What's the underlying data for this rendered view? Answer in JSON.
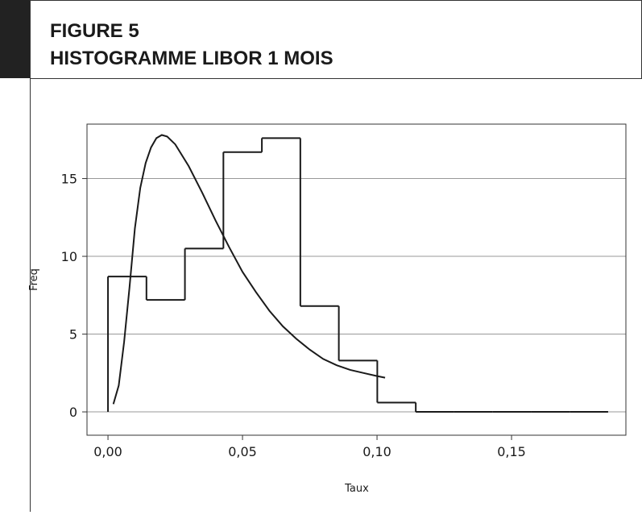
{
  "chart_data": {
    "type": "histogram",
    "title": "FIGURE 5",
    "subtitle": "HISTOGRAMME LIBOR 1 MOIS",
    "xlabel": "Taux",
    "ylabel": "Freq",
    "bins": [
      0,
      0.0143,
      0.0286,
      0.0429,
      0.0572,
      0.0715,
      0.0858,
      0.1001,
      0.1144,
      0.1287,
      0.143,
      0.1573,
      0.1716,
      0.1859
    ],
    "values": [
      8.7,
      7.2,
      10.5,
      16.7,
      17.6,
      6.8,
      3.3,
      0.6,
      0,
      0,
      0,
      0,
      0
    ],
    "color": "#1a1a1a",
    "curve": {
      "x": [
        0.002,
        0.004,
        0.006,
        0.008,
        0.01,
        0.012,
        0.014,
        0.016,
        0.018,
        0.02,
        0.022,
        0.025,
        0.03,
        0.035,
        0.04,
        0.045,
        0.05,
        0.055,
        0.06,
        0.065,
        0.07,
        0.075,
        0.08,
        0.085,
        0.09,
        0.095,
        0.1,
        0.103
      ],
      "y": [
        0.5,
        1.7,
        4.5,
        8,
        11.8,
        14.4,
        16.0,
        17.0,
        17.6,
        17.8,
        17.7,
        17.2,
        15.8,
        14.1,
        12.3,
        10.6,
        9.0,
        7.7,
        6.5,
        5.5,
        4.7,
        4.0,
        3.4,
        3.0,
        2.7,
        2.5,
        2.3,
        2.2
      ],
      "color": "#1a1a1a"
    },
    "xlim": [
      -0.0078,
      0.1925
    ],
    "ylim": [
      -1.5,
      18.5
    ],
    "xticks": [
      {
        "value": 0,
        "label": "0,00"
      },
      {
        "value": 0.05,
        "label": "0,05"
      },
      {
        "value": 0.1,
        "label": "0,10"
      },
      {
        "value": 0.15,
        "label": "0,15"
      }
    ],
    "yticks": [
      0,
      5,
      10,
      15
    ],
    "grid": true
  }
}
